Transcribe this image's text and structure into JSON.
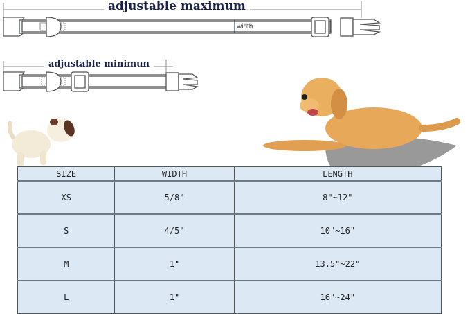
{
  "diagram": {
    "max_label": "adjustable maximum",
    "min_label": "adjustable minimun",
    "width_label": "width"
  },
  "size_table": {
    "headers": [
      "SIZE",
      "WIDTH",
      "LENGTH"
    ],
    "rows": [
      {
        "size": "XS",
        "width": "5/8\"",
        "length": "8\"~12\""
      },
      {
        "size": "S",
        "width": "4/5\"",
        "length": "10\"~16\""
      },
      {
        "size": "M",
        "width": "1\"",
        "length": "13.5\"~22\""
      },
      {
        "size": "L",
        "width": "1\"",
        "length": "16\"~24\""
      }
    ]
  },
  "colors": {
    "table_bg": "#dce9f5",
    "title": "#1c2148",
    "dog": "#e8a85a"
  }
}
